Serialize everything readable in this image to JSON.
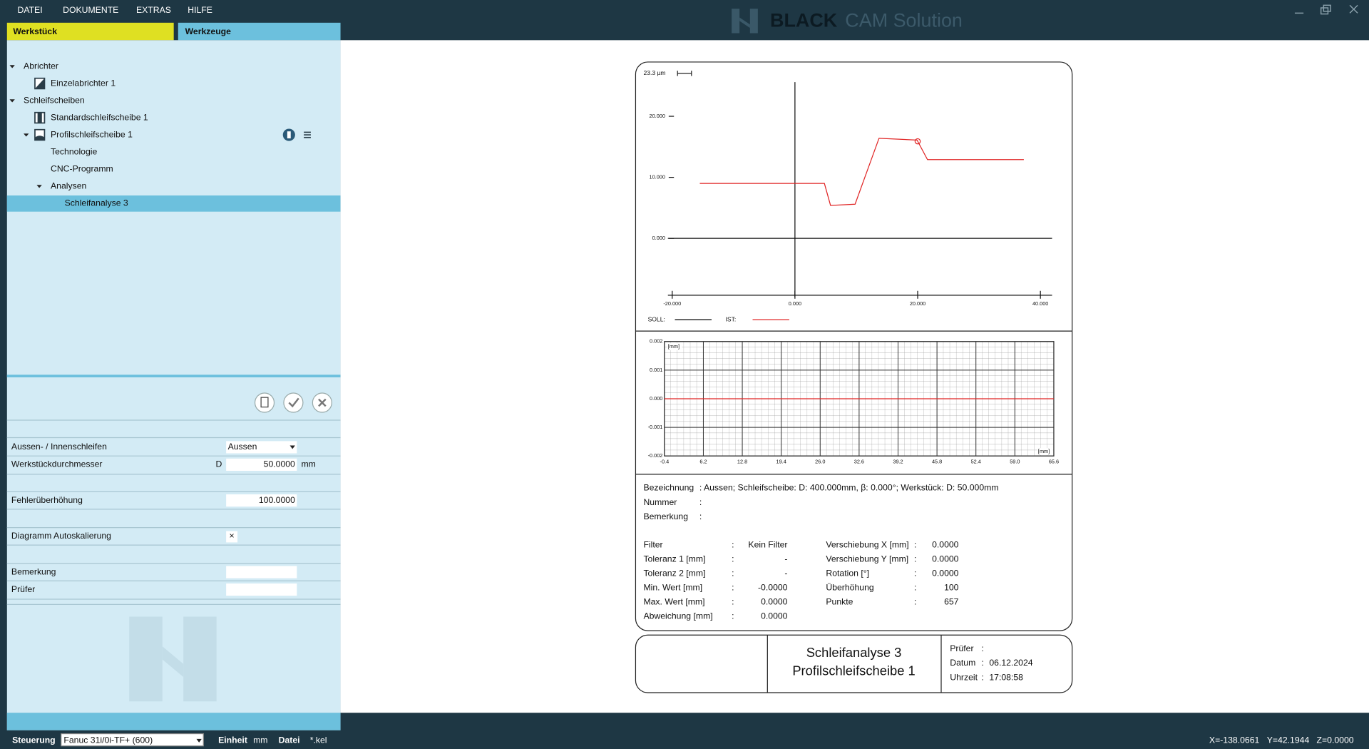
{
  "menu": [
    "DATEI",
    "DOKUMENTE",
    "EXTRAS",
    "HILFE"
  ],
  "brand": {
    "strong": "BLACK",
    "light": "CAM Solution"
  },
  "tabs": [
    "Werkstück",
    "Werkzeuge"
  ],
  "tree": [
    {
      "label": "Abrichter",
      "level": 0,
      "expanded": true
    },
    {
      "label": "Einzelabrichter 1",
      "level": 1,
      "icon": "dresser"
    },
    {
      "label": "Schleifscheiben",
      "level": 0,
      "expanded": true
    },
    {
      "label": "Standardschleifscheibe 1",
      "level": 1,
      "icon": "wheel"
    },
    {
      "label": "Profilschleifscheibe 1",
      "level": 1,
      "icon": "profile",
      "expanded": true,
      "actions": true
    },
    {
      "label": "Technologie",
      "level": 2
    },
    {
      "label": "CNC-Programm",
      "level": 2
    },
    {
      "label": "Analysen",
      "level": 2,
      "expanded": true
    },
    {
      "label": "Schleifanalyse 3",
      "level": 3,
      "selected": true
    }
  ],
  "form": [
    {
      "label": "Aussen- / Innenschleifen",
      "value": "Aussen",
      "kind": "select"
    },
    {
      "label": "Werkstückdurchmesser",
      "prefix": "D",
      "value": "50.0000",
      "unit": "mm",
      "kind": "number"
    },
    {
      "label": "Fehlerüberhöhung",
      "value": "100.0000",
      "kind": "number"
    },
    {
      "label": "Diagramm Autoskalierung",
      "value": "×",
      "kind": "check"
    },
    {
      "label": "Bemerkung",
      "kind": "text"
    },
    {
      "label": "Prüfer",
      "kind": "text"
    }
  ],
  "status": {
    "control_label": "Steuerung",
    "control": "Fanuc 31i/0i-TF+ (600)",
    "unit_label": "Einheit",
    "unit": "mm",
    "file_label": "Datei",
    "file": "*.kel",
    "coords": [
      "X=-138.0661",
      "Y=42.1944",
      "Z=0.0000"
    ]
  },
  "report": {
    "profile_chart": {
      "type": "line",
      "scale_label": "23.3 µm",
      "xlim": [
        -20.7,
        41.9
      ],
      "ylim": [
        -9.6,
        25.6
      ],
      "xticks": [
        {
          "value": -20,
          "label": "-20.000"
        },
        {
          "value": 0,
          "label": "0.000"
        },
        {
          "value": 20,
          "label": "20.000"
        },
        {
          "value": 40,
          "label": "40.000"
        }
      ],
      "yticks": [
        {
          "value": 0,
          "label": "0.000"
        },
        {
          "value": 10,
          "label": "10.000"
        },
        {
          "value": 20,
          "label": "20.000"
        }
      ],
      "legend": [
        {
          "name": "SOLL:",
          "color": "#000000"
        },
        {
          "name": "IST:",
          "color": "#e02424"
        }
      ],
      "series": [
        {
          "x": [
            -15.5,
            4.8,
            5.8,
            9.8,
            13.7,
            19.9,
            21.6,
            37.3
          ],
          "values": [
            9.0,
            9.0,
            5.4,
            5.6,
            16.4,
            16.1,
            12.9,
            12.9
          ]
        }
      ],
      "marker_point": {
        "x": 20.0,
        "y": 15.9
      }
    },
    "deviation_chart": {
      "type": "line",
      "xlim": [
        -0.4,
        65.6
      ],
      "ylim": [
        -0.002,
        0.002
      ],
      "xticks": [
        -0.4,
        6.2,
        12.8,
        19.4,
        {
          "value": 26,
          "label": "26.0"
        },
        32.6,
        39.2,
        45.8,
        52.4,
        {
          "value": 59,
          "label": "59.0"
        },
        65.6
      ],
      "yticks": [
        0.002,
        0.001,
        {
          "value": 0,
          "label": "0.000"
        },
        -0.001,
        -0.002
      ],
      "y_unit": "[mm]",
      "x_unit": "[mm]",
      "color": "#e02424",
      "series": [
        {
          "x": [
            -0.4,
            65.6
          ],
          "values": [
            0,
            0
          ]
        }
      ]
    },
    "info": {
      "sep": ":",
      "header": [
        {
          "label": "Bezeichnung",
          "value": "Aussen; Schleifscheibe: D: 400.000mm, β: 0.000°; Werkstück: D: 50.000mm"
        },
        {
          "label": "Nummer"
        },
        {
          "label": "Bemerkung"
        }
      ],
      "left": [
        {
          "label": "Filter",
          "value": "Kein Filter"
        },
        {
          "label": "Toleranz 1 [mm]",
          "value": "-"
        },
        {
          "label": "Toleranz 2 [mm]",
          "value": "-"
        },
        {
          "label": "Min. Wert [mm]",
          "value": "-0.0000"
        },
        {
          "label": "Max. Wert [mm]",
          "value": "0.0000"
        },
        {
          "label": "Abweichung [mm]",
          "value": "0.0000"
        }
      ],
      "right": [
        {
          "label": "Verschiebung X [mm]",
          "value": "0.0000"
        },
        {
          "label": "Verschiebung Y [mm]",
          "value": "0.0000"
        },
        {
          "label": "Rotation [°]",
          "value": "0.0000"
        },
        {
          "label": "Überhöhung",
          "value": "100"
        },
        {
          "label": "Punkte",
          "value": "657"
        }
      ]
    },
    "title_block": {
      "title": "Schleifanalyse 3",
      "subtitle": "Profilschleifscheibe 1",
      "fields": [
        {
          "label": "Prüfer"
        },
        {
          "label": "Datum",
          "value": "06.12.2024"
        },
        {
          "label": "Uhrzeit",
          "value": "17:08:58"
        }
      ]
    }
  }
}
